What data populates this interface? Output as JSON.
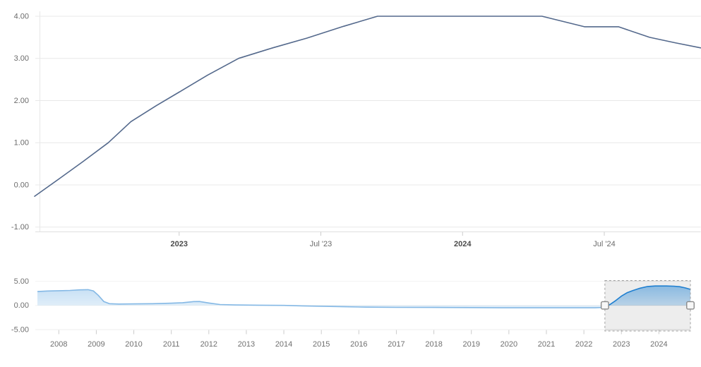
{
  "chart_data": [
    {
      "id": "main-chart",
      "type": "line",
      "title": "",
      "xlabel": "",
      "ylabel": "",
      "grid": "horizontal",
      "grid_color": "#e8e8e8",
      "axis_line_color": "#e0e0e0",
      "tick_color": "#cccccc",
      "label_color": "#6b6b6b",
      "bold_label_color": "#4a4a4a",
      "x_axis": {
        "unit": "decimal_year",
        "range": [
          2022.49,
          2024.84
        ],
        "ticks": [
          {
            "x": 2023.0,
            "label": "2023",
            "bold": true
          },
          {
            "x": 2023.5,
            "label": "Jul '23",
            "bold": false
          },
          {
            "x": 2024.0,
            "label": "2024",
            "bold": true
          },
          {
            "x": 2024.5,
            "label": "Jul '24",
            "bold": false
          }
        ]
      },
      "y_axis": {
        "range": [
          -1,
          4
        ],
        "ticks": [
          {
            "y": 4,
            "label": "4.00"
          },
          {
            "y": 3,
            "label": "3.00"
          },
          {
            "y": 2,
            "label": "2.00"
          },
          {
            "y": 1,
            "label": "1.00"
          },
          {
            "y": 0,
            "label": "0.00"
          },
          {
            "y": -1,
            "label": "-1.00"
          }
        ]
      },
      "series": [
        {
          "name": "interest-rate",
          "color": "#54698c",
          "line_width": 1.6,
          "points": [
            [
              2022.49,
              -0.27
            ],
            [
              2022.58,
              0.16
            ],
            [
              2022.66,
              0.55
            ],
            [
              2022.75,
              1.0
            ],
            [
              2022.83,
              1.5
            ],
            [
              2022.92,
              1.88
            ],
            [
              2023.0,
              2.2
            ],
            [
              2023.1,
              2.6
            ],
            [
              2023.21,
              3.0
            ],
            [
              2023.33,
              3.25
            ],
            [
              2023.45,
              3.48
            ],
            [
              2023.58,
              3.76
            ],
            [
              2023.7,
              4.0
            ],
            [
              2023.9,
              4.0
            ],
            [
              2024.1,
              4.0
            ],
            [
              2024.28,
              4.0
            ],
            [
              2024.43,
              3.75
            ],
            [
              2024.55,
              3.75
            ],
            [
              2024.66,
              3.5
            ],
            [
              2024.75,
              3.37
            ],
            [
              2024.84,
              3.25
            ]
          ]
        }
      ]
    },
    {
      "id": "navigator",
      "type": "area",
      "title": "",
      "grid": "horizontal",
      "grid_color": "#e8e8e8",
      "axis_line_color": "#dedede",
      "tick_color": "#cccccc",
      "label_color": "#707070",
      "x_axis": {
        "unit": "decimal_year",
        "range": [
          2007.43,
          2024.84
        ],
        "ticks": [
          {
            "x": 2008,
            "label": "2008"
          },
          {
            "x": 2009,
            "label": "2009"
          },
          {
            "x": 2010,
            "label": "2010"
          },
          {
            "x": 2011,
            "label": "2011"
          },
          {
            "x": 2012,
            "label": "2012"
          },
          {
            "x": 2013,
            "label": "2013"
          },
          {
            "x": 2014,
            "label": "2014"
          },
          {
            "x": 2015,
            "label": "2015"
          },
          {
            "x": 2016,
            "label": "2016"
          },
          {
            "x": 2017,
            "label": "2017"
          },
          {
            "x": 2018,
            "label": "2018"
          },
          {
            "x": 2019,
            "label": "2019"
          },
          {
            "x": 2020,
            "label": "2020"
          },
          {
            "x": 2021,
            "label": "2021"
          },
          {
            "x": 2022,
            "label": "2022"
          },
          {
            "x": 2023,
            "label": "2023"
          },
          {
            "x": 2024,
            "label": "2024"
          }
        ]
      },
      "y_axis": {
        "range": [
          -5,
          5
        ],
        "ticks": [
          {
            "y": 5,
            "label": "5.00"
          },
          {
            "y": 0,
            "label": "0.00"
          },
          {
            "y": -5,
            "label": "-5.00"
          }
        ]
      },
      "selection": {
        "from": 2022.56,
        "to": 2024.84,
        "mask_fill": "rgba(0,0,0,0.07)",
        "border_color": "#a0a0a0",
        "handle_fill": "#f7f7f7",
        "handle_border": "#8a8a8a"
      },
      "series": [
        {
          "name": "interest-rate-history",
          "color": "#1f7fd0",
          "line_width": 1.6,
          "fill_gradient_top": "rgba(33,131,212,0.55)",
          "fill_gradient_bottom": "rgba(33,131,212,0.03)",
          "points": [
            [
              2007.43,
              2.85
            ],
            [
              2007.7,
              2.97
            ],
            [
              2008.0,
              3.02
            ],
            [
              2008.3,
              3.08
            ],
            [
              2008.55,
              3.2
            ],
            [
              2008.78,
              3.25
            ],
            [
              2008.92,
              3.0
            ],
            [
              2009.05,
              2.1
            ],
            [
              2009.2,
              0.8
            ],
            [
              2009.35,
              0.35
            ],
            [
              2009.6,
              0.28
            ],
            [
              2010.0,
              0.3
            ],
            [
              2010.5,
              0.35
            ],
            [
              2011.0,
              0.45
            ],
            [
              2011.3,
              0.55
            ],
            [
              2011.6,
              0.78
            ],
            [
              2011.75,
              0.8
            ],
            [
              2012.0,
              0.5
            ],
            [
              2012.3,
              0.18
            ],
            [
              2012.7,
              0.08
            ],
            [
              2013.3,
              0.05
            ],
            [
              2014.0,
              0.0
            ],
            [
              2014.5,
              -0.1
            ],
            [
              2015.0,
              -0.18
            ],
            [
              2015.6,
              -0.27
            ],
            [
              2016.2,
              -0.36
            ],
            [
              2017.0,
              -0.4
            ],
            [
              2018.0,
              -0.42
            ],
            [
              2019.0,
              -0.45
            ],
            [
              2019.8,
              -0.5
            ],
            [
              2020.8,
              -0.5
            ],
            [
              2021.8,
              -0.5
            ],
            [
              2022.3,
              -0.5
            ],
            [
              2022.56,
              -0.4
            ],
            [
              2022.7,
              0.2
            ],
            [
              2022.85,
              1.0
            ],
            [
              2023.0,
              1.9
            ],
            [
              2023.15,
              2.6
            ],
            [
              2023.3,
              3.05
            ],
            [
              2023.5,
              3.55
            ],
            [
              2023.7,
              3.9
            ],
            [
              2023.9,
              4.0
            ],
            [
              2024.2,
              4.0
            ],
            [
              2024.4,
              3.95
            ],
            [
              2024.55,
              3.85
            ],
            [
              2024.7,
              3.6
            ],
            [
              2024.84,
              3.3
            ]
          ]
        }
      ]
    }
  ]
}
